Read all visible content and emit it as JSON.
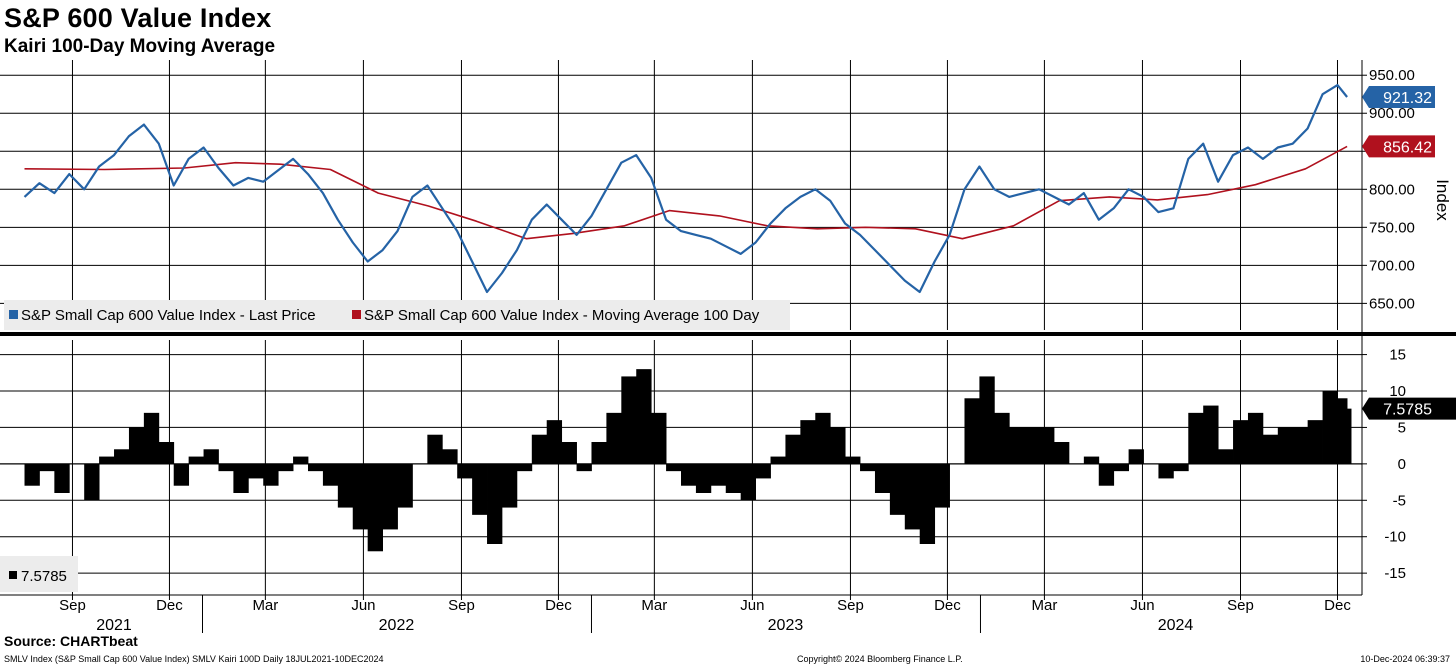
{
  "header": {
    "title": "S&P 600 Value Index",
    "subtitle": "Kairi 100-Day Moving Average"
  },
  "footer": {
    "source": "Source: CHARTbeat",
    "left": "SMLV Index (S&P Small Cap 600 Value Index) SMLV Kairi 100D  Daily 18JUL2021-10DEC2024",
    "center": "Copyright© 2024 Bloomberg Finance L.P.",
    "right": "10-Dec-2024 06:39:37"
  },
  "colors": {
    "price": "#2563a6",
    "ma": "#b0111e",
    "kairi": "#000000",
    "grid": "#000000"
  },
  "chart_data": [
    {
      "type": "line",
      "name": "price-panel",
      "ylabel": "Index",
      "ylim": [
        615,
        970
      ],
      "yticks": [
        650,
        700,
        750,
        800,
        850,
        900,
        950
      ],
      "ytick_labels": [
        "650.00",
        "700.00",
        "750.00",
        "800.00",
        "850.00",
        "900.00",
        "950.00"
      ],
      "grid": true,
      "legend_position": "bottom-left",
      "series": [
        {
          "name": "S&P Small Cap 600 Value Index - Last Price",
          "color": "#2563a6",
          "last_label": "921.32",
          "x": [
            "2021-07-18",
            "2021-08-01",
            "2021-08-15",
            "2021-08-29",
            "2021-09-12",
            "2021-09-26",
            "2021-10-10",
            "2021-10-24",
            "2021-11-07",
            "2021-11-21",
            "2021-12-05",
            "2021-12-19",
            "2022-01-02",
            "2022-01-16",
            "2022-01-30",
            "2022-02-13",
            "2022-02-27",
            "2022-03-13",
            "2022-03-27",
            "2022-04-10",
            "2022-04-24",
            "2022-05-08",
            "2022-05-22",
            "2022-06-05",
            "2022-06-19",
            "2022-07-03",
            "2022-07-17",
            "2022-07-31",
            "2022-08-14",
            "2022-08-28",
            "2022-09-11",
            "2022-09-25",
            "2022-10-09",
            "2022-10-23",
            "2022-11-06",
            "2022-11-20",
            "2022-12-04",
            "2022-12-18",
            "2023-01-01",
            "2023-01-15",
            "2023-01-29",
            "2023-02-12",
            "2023-02-26",
            "2023-03-12",
            "2023-03-26",
            "2023-04-09",
            "2023-04-23",
            "2023-05-07",
            "2023-05-21",
            "2023-06-04",
            "2023-06-18",
            "2023-07-02",
            "2023-07-16",
            "2023-07-30",
            "2023-08-13",
            "2023-08-27",
            "2023-09-10",
            "2023-09-24",
            "2023-10-08",
            "2023-10-22",
            "2023-11-05",
            "2023-11-19",
            "2023-12-03",
            "2023-12-17",
            "2023-12-31",
            "2024-01-14",
            "2024-01-28",
            "2024-02-11",
            "2024-02-25",
            "2024-03-10",
            "2024-03-24",
            "2024-04-07",
            "2024-04-21",
            "2024-05-05",
            "2024-05-19",
            "2024-06-02",
            "2024-06-16",
            "2024-06-30",
            "2024-07-14",
            "2024-07-28",
            "2024-08-11",
            "2024-08-25",
            "2024-09-08",
            "2024-09-22",
            "2024-10-06",
            "2024-10-20",
            "2024-11-03",
            "2024-11-17",
            "2024-12-01",
            "2024-12-10"
          ],
          "values": [
            790,
            808,
            795,
            820,
            800,
            830,
            845,
            870,
            885,
            860,
            805,
            840,
            855,
            828,
            805,
            815,
            810,
            825,
            840,
            820,
            795,
            760,
            730,
            705,
            720,
            745,
            790,
            805,
            775,
            745,
            705,
            665,
            690,
            720,
            760,
            780,
            760,
            740,
            765,
            800,
            835,
            845,
            815,
            760,
            745,
            740,
            735,
            725,
            715,
            730,
            755,
            775,
            790,
            800,
            785,
            755,
            740,
            720,
            700,
            680,
            665,
            705,
            740,
            800,
            830,
            800,
            790,
            795,
            800,
            790,
            780,
            795,
            760,
            775,
            800,
            790,
            770,
            775,
            840,
            860,
            810,
            845,
            855,
            840,
            855,
            860,
            880,
            925,
            937,
            921.32
          ]
        },
        {
          "name": "S&P Small Cap 600 Value Index - Moving Average 100 Day",
          "color": "#b0111e",
          "last_label": "856.42",
          "x": [
            "2021-07-18",
            "2021-10-01",
            "2021-12-15",
            "2022-02-01",
            "2022-03-15",
            "2022-05-01",
            "2022-06-15",
            "2022-08-01",
            "2022-09-15",
            "2022-11-01",
            "2022-12-15",
            "2023-02-01",
            "2023-03-15",
            "2023-05-01",
            "2023-06-15",
            "2023-08-01",
            "2023-09-15",
            "2023-11-01",
            "2023-12-15",
            "2024-02-01",
            "2024-03-15",
            "2024-05-01",
            "2024-06-15",
            "2024-08-01",
            "2024-09-15",
            "2024-11-01",
            "2024-12-10"
          ],
          "values": [
            827,
            826,
            828,
            835,
            833,
            826,
            795,
            778,
            758,
            735,
            742,
            752,
            772,
            765,
            752,
            748,
            750,
            748,
            735,
            752,
            785,
            790,
            786,
            793,
            806,
            827,
            856.42
          ]
        }
      ]
    },
    {
      "type": "bar",
      "name": "kairi-panel",
      "ylim": [
        -18,
        17
      ],
      "yticks": [
        -15,
        -10,
        -5,
        0,
        5,
        10,
        15
      ],
      "ytick_labels": [
        "-15",
        "-10",
        "-5",
        "0",
        "5",
        "10",
        "15"
      ],
      "grid": true,
      "legend_label": "7.5785",
      "series": [
        {
          "name": "SMLV Kairi 100D",
          "color": "#000000",
          "last_label": "7.5785",
          "x": [
            "2021-07-18",
            "2021-08-01",
            "2021-08-15",
            "2021-08-29",
            "2021-09-12",
            "2021-09-26",
            "2021-10-10",
            "2021-10-24",
            "2021-11-07",
            "2021-11-21",
            "2021-12-05",
            "2021-12-19",
            "2022-01-02",
            "2022-01-16",
            "2022-01-30",
            "2022-02-13",
            "2022-02-27",
            "2022-03-13",
            "2022-03-27",
            "2022-04-10",
            "2022-04-24",
            "2022-05-08",
            "2022-05-22",
            "2022-06-05",
            "2022-06-19",
            "2022-07-03",
            "2022-07-17",
            "2022-07-31",
            "2022-08-14",
            "2022-08-28",
            "2022-09-11",
            "2022-09-25",
            "2022-10-09",
            "2022-10-23",
            "2022-11-06",
            "2022-11-20",
            "2022-12-04",
            "2022-12-18",
            "2023-01-01",
            "2023-01-15",
            "2023-01-29",
            "2023-02-12",
            "2023-02-26",
            "2023-03-12",
            "2023-03-26",
            "2023-04-09",
            "2023-04-23",
            "2023-05-07",
            "2023-05-21",
            "2023-06-04",
            "2023-06-18",
            "2023-07-02",
            "2023-07-16",
            "2023-07-30",
            "2023-08-13",
            "2023-08-27",
            "2023-09-10",
            "2023-09-24",
            "2023-10-08",
            "2023-10-22",
            "2023-11-05",
            "2023-11-19",
            "2023-12-03",
            "2023-12-17",
            "2023-12-31",
            "2024-01-14",
            "2024-01-28",
            "2024-02-11",
            "2024-02-25",
            "2024-03-10",
            "2024-03-24",
            "2024-04-07",
            "2024-04-21",
            "2024-05-05",
            "2024-05-19",
            "2024-06-02",
            "2024-06-16",
            "2024-06-30",
            "2024-07-14",
            "2024-07-28",
            "2024-08-11",
            "2024-08-25",
            "2024-09-08",
            "2024-09-22",
            "2024-10-06",
            "2024-10-20",
            "2024-11-03",
            "2024-11-17",
            "2024-12-01",
            "2024-12-10"
          ],
          "values": [
            -3,
            -1,
            -4,
            0,
            -5,
            1,
            2,
            5,
            7,
            3,
            -3,
            1,
            2,
            -1,
            -4,
            -2,
            -3,
            -1,
            1,
            -1,
            -3,
            -6,
            -9,
            -12,
            -9,
            -6,
            0,
            4,
            2,
            -2,
            -7,
            -11,
            -6,
            -1,
            4,
            6,
            3,
            -1,
            3,
            7,
            12,
            13,
            7,
            -1,
            -3,
            -4,
            -3,
            -4,
            -5,
            -2,
            1,
            4,
            6,
            7,
            5,
            1,
            -1,
            -4,
            -7,
            -9,
            -11,
            -6,
            0,
            9,
            12,
            7,
            5,
            5,
            5,
            3,
            0,
            1,
            -3,
            -1,
            2,
            0,
            -2,
            -1,
            7,
            8,
            2,
            6,
            7,
            4,
            5,
            5,
            6,
            10,
            9,
            7.5785
          ]
        }
      ]
    }
  ],
  "xaxis": {
    "months": [
      {
        "label": "Sep",
        "date": "2021-09-01"
      },
      {
        "label": "Dec",
        "date": "2021-12-01"
      },
      {
        "label": "Mar",
        "date": "2022-03-01"
      },
      {
        "label": "Jun",
        "date": "2022-06-01"
      },
      {
        "label": "Sep",
        "date": "2022-09-01"
      },
      {
        "label": "Dec",
        "date": "2022-12-01"
      },
      {
        "label": "Mar",
        "date": "2023-03-01"
      },
      {
        "label": "Jun",
        "date": "2023-06-01"
      },
      {
        "label": "Sep",
        "date": "2023-09-01"
      },
      {
        "label": "Dec",
        "date": "2023-12-01"
      },
      {
        "label": "Mar",
        "date": "2024-03-01"
      },
      {
        "label": "Jun",
        "date": "2024-06-01"
      },
      {
        "label": "Sep",
        "date": "2024-09-01"
      },
      {
        "label": "Dec",
        "date": "2024-12-01"
      }
    ],
    "years": [
      {
        "label": "2021",
        "date": "2021-10-10",
        "sep_date": null
      },
      {
        "label": "2022",
        "date": "2022-07-02",
        "sep_date": "2022-01-01"
      },
      {
        "label": "2023",
        "date": "2023-07-02",
        "sep_date": "2023-01-01"
      },
      {
        "label": "2024",
        "date": "2024-07-02",
        "sep_date": "2024-01-01"
      }
    ],
    "range": [
      "2021-06-25",
      "2024-12-24"
    ]
  }
}
